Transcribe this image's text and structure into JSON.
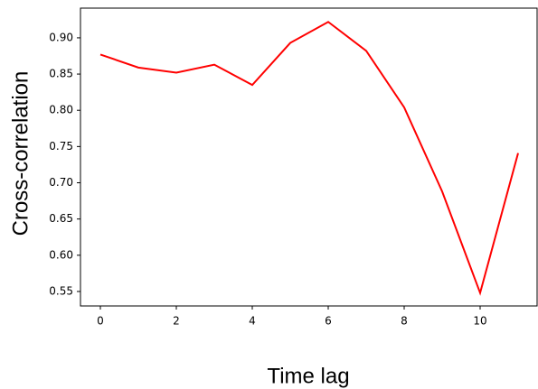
{
  "chart_data": {
    "type": "line",
    "x_label": "Time lag",
    "y_label": "Cross-correlation",
    "x": [
      0,
      1,
      2,
      3,
      4,
      5,
      6,
      7,
      8,
      9,
      10,
      11
    ],
    "series": [
      {
        "color": "#ff0000",
        "values": [
          0.877,
          0.859,
          0.852,
          0.863,
          0.835,
          0.893,
          0.922,
          0.882,
          0.804,
          0.688,
          0.548,
          0.741
        ]
      }
    ],
    "xlim": [
      -0.524,
      11.5
    ],
    "xticks": [
      0,
      2,
      4,
      6,
      8,
      10
    ],
    "ylim": [
      0.53,
      0.941
    ],
    "yticks": [
      0.55,
      {
        "value": 0.6,
        "label": "0.60"
      },
      0.65,
      {
        "value": 0.7,
        "label": "0.70"
      },
      0.75,
      {
        "value": 0.8,
        "label": "0.80"
      },
      0.85,
      {
        "value": 0.9,
        "label": "0.90"
      }
    ]
  }
}
